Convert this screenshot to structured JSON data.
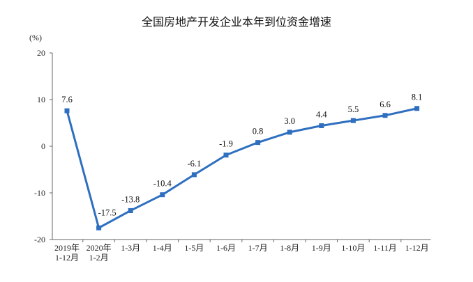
{
  "chart_data": {
    "type": "line",
    "title": "全国房地产开发企业本年到位资金增速",
    "ylabel": "(%)",
    "xlabel": "",
    "ylim": [
      -20,
      20
    ],
    "yticks": [
      20,
      10,
      0,
      -10,
      -20
    ],
    "grid": false,
    "legend": "none",
    "categories": [
      [
        "2019年",
        "1-12月"
      ],
      [
        "2020年",
        "1-2月"
      ],
      [
        "1-3月"
      ],
      [
        "1-4月"
      ],
      [
        "1-5月"
      ],
      [
        "1-6月"
      ],
      [
        "1-7月"
      ],
      [
        "1-8月"
      ],
      [
        "1-9月"
      ],
      [
        "1-10月"
      ],
      [
        "1-11月"
      ],
      [
        "1-12月"
      ]
    ],
    "series": [
      {
        "values": [
          7.6,
          -17.5,
          -13.8,
          -10.4,
          -6.1,
          -1.9,
          0.8,
          3.0,
          4.4,
          5.5,
          6.6,
          8.1
        ],
        "labels": [
          "7.6",
          "-17.5",
          "-13.8",
          "-10.4",
          "-6.1",
          "-1.9",
          "0.8",
          "3.0",
          "4.4",
          "5.5",
          "6.6",
          "8.1"
        ],
        "color": "#2f6fc0"
      }
    ]
  }
}
